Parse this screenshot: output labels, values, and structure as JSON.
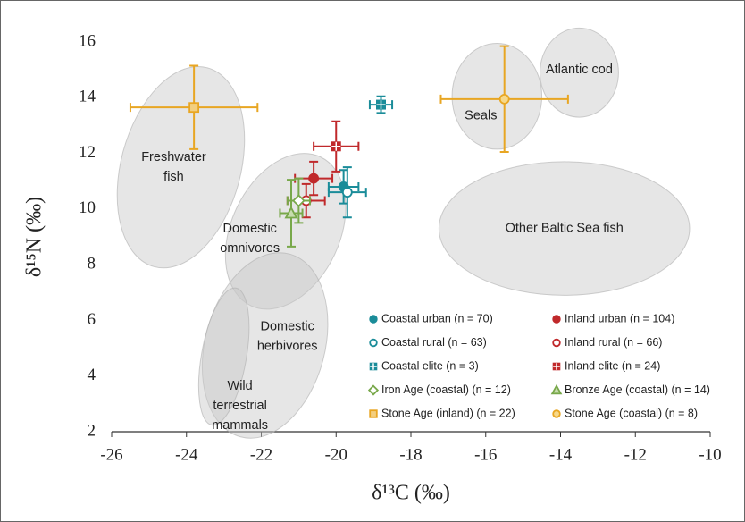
{
  "chart_data": {
    "type": "scatter",
    "xlabel": "δ¹³C (‰)",
    "ylabel": "δ¹⁵N (‰)",
    "xlim": [
      -26,
      -10
    ],
    "xticks": [
      -26,
      -24,
      -22,
      -20,
      -18,
      -16,
      -14,
      -12,
      -10
    ],
    "ylim": [
      2,
      16
    ],
    "yticks": [
      2,
      4,
      6,
      8,
      10,
      12,
      14,
      16
    ],
    "grid": false,
    "regions": [
      {
        "label": "Freshwater fish",
        "x": -24.15,
        "y": 11.5,
        "rx": 1.6,
        "ry": 3.7,
        "angle": 15
      },
      {
        "label": "Domestic omnivores",
        "x": -21.35,
        "y": 9.2,
        "rx": 1.45,
        "ry": 2.95,
        "angle": 25
      },
      {
        "label": "Domestic herbivores",
        "x": -21.9,
        "y": 5.1,
        "rx": 1.6,
        "ry": 3.4,
        "angle": 15
      },
      {
        "label": "Wild terrestrial mammals",
        "x": -23.0,
        "y": 4.7,
        "rx": 0.6,
        "ry": 2.5,
        "angle": 10
      },
      {
        "label": "Seals",
        "x": -15.7,
        "y": 14.05,
        "rx": 1.2,
        "ry": 1.9,
        "angle": 0
      },
      {
        "label": "Atlantic cod",
        "x": -13.5,
        "y": 14.9,
        "rx": 1.05,
        "ry": 1.6,
        "angle": 0
      },
      {
        "label": "Other Baltic Sea fish",
        "x": -13.9,
        "y": 9.3,
        "rx": 3.35,
        "ry": 2.4,
        "angle": 0
      }
    ],
    "series": [
      {
        "name": "Coastal urban (n = 70)",
        "color": "#1a8c99",
        "marker": "circle",
        "x": [
          -19.8
        ],
        "values": [
          10.8
        ],
        "xerr": [
          0.4
        ],
        "yerr": [
          0.6
        ]
      },
      {
        "name": "Inland urban (n = 104)",
        "color": "#c0292b",
        "marker": "circle",
        "x": [
          -20.6
        ],
        "values": [
          11.1
        ],
        "xerr": [
          0.5
        ],
        "yerr": [
          0.6
        ]
      },
      {
        "name": "Coastal rural (n = 63)",
        "color": "#1a8c99",
        "marker": "circle-open",
        "x": [
          -19.7
        ],
        "values": [
          10.6
        ],
        "xerr": [
          0.5
        ],
        "yerr": [
          0.9
        ]
      },
      {
        "name": "Inland rural (n = 66)",
        "color": "#c0292b",
        "marker": "circle-open",
        "x": [
          -20.8
        ],
        "values": [
          10.3
        ],
        "xerr": [
          0.5
        ],
        "yerr": [
          0.6
        ]
      },
      {
        "name": "Coastal elite (n = 3)",
        "color": "#1a8c99",
        "marker": "square-cross",
        "x": [
          -18.8
        ],
        "values": [
          13.75
        ],
        "xerr": [
          0.3
        ],
        "yerr": [
          0.3
        ]
      },
      {
        "name": "Inland elite (n = 24)",
        "color": "#c0292b",
        "marker": "square-cross",
        "x": [
          -20.0
        ],
        "values": [
          12.25
        ],
        "xerr": [
          0.6
        ],
        "yerr": [
          0.9
        ]
      },
      {
        "name": "Iron Age (coastal) (n = 12)",
        "color": "#78a84a",
        "marker": "diamond",
        "x": [
          -21.0
        ],
        "values": [
          10.3
        ],
        "xerr": [
          0.3
        ],
        "yerr": [
          0.8
        ]
      },
      {
        "name": "Bronze Age (coastal) (n = 14)",
        "color": "#78a84a",
        "marker": "triangle",
        "x": [
          -21.2
        ],
        "values": [
          9.85
        ],
        "xerr": [
          0.3
        ],
        "yerr": [
          1.2
        ]
      },
      {
        "name": "Stone Age (inland) (n = 22)",
        "color": "#e8a623",
        "marker": "square",
        "x": [
          -23.8
        ],
        "values": [
          13.65
        ],
        "xerr": [
          1.7
        ],
        "yerr": [
          1.5
        ]
      },
      {
        "name": "Stone Age (coastal) (n = 8)",
        "color": "#e8a623",
        "marker": "circle-light",
        "x": [
          -15.5
        ],
        "values": [
          13.95
        ],
        "xerr": [
          1.7
        ],
        "yerr": [
          1.9
        ]
      }
    ]
  }
}
